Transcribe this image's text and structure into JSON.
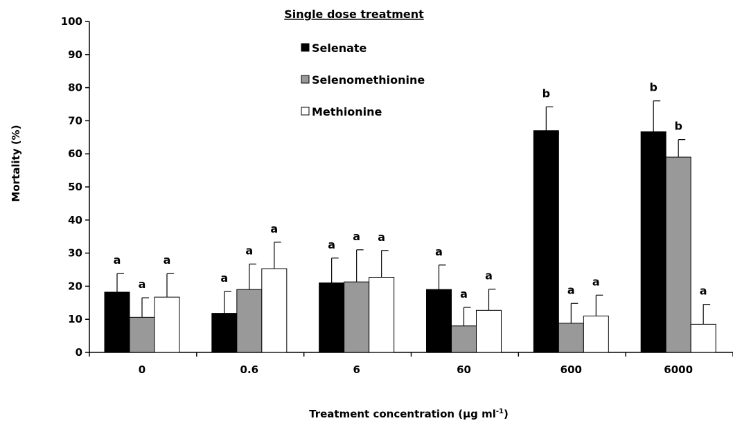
{
  "chart_data": {
    "type": "bar",
    "title": "Single dose treatment",
    "xlabel": "Treatment concentration (µg ml",
    "xlabel_superscript": "-1",
    "xlabel_suffix": ")",
    "ylabel": "Mortality (%)",
    "ylim": [
      0,
      100
    ],
    "yticks": [
      0,
      10,
      20,
      30,
      40,
      50,
      60,
      70,
      80,
      90,
      100
    ],
    "categories": [
      "0",
      "0.6",
      "6",
      "60",
      "600",
      "6000"
    ],
    "legend_position": "top-center",
    "series": [
      {
        "name": "Selenate",
        "color": "#000000",
        "values": [
          18.2,
          11.8,
          21.0,
          19.0,
          67.0,
          66.7
        ],
        "errors": [
          5.6,
          6.6,
          7.5,
          7.4,
          7.2,
          9.3
        ],
        "labels": [
          "a",
          "a",
          "a",
          "a",
          "b",
          "b"
        ]
      },
      {
        "name": "Selenomethionine",
        "color": "#999999",
        "values": [
          10.6,
          19.0,
          21.3,
          8.0,
          8.8,
          59.0
        ],
        "errors": [
          5.9,
          7.7,
          9.7,
          5.6,
          6.0,
          5.3
        ],
        "labels": [
          "a",
          "a",
          "a",
          "a",
          "a",
          "b"
        ]
      },
      {
        "name": "Methionine",
        "color": "#ffffff",
        "values": [
          16.7,
          25.3,
          22.7,
          12.7,
          11.0,
          8.5
        ],
        "errors": [
          7.1,
          8.0,
          8.1,
          6.4,
          6.3,
          6.0
        ],
        "labels": [
          "a",
          "a",
          "a",
          "a",
          "a",
          "a"
        ]
      }
    ]
  }
}
